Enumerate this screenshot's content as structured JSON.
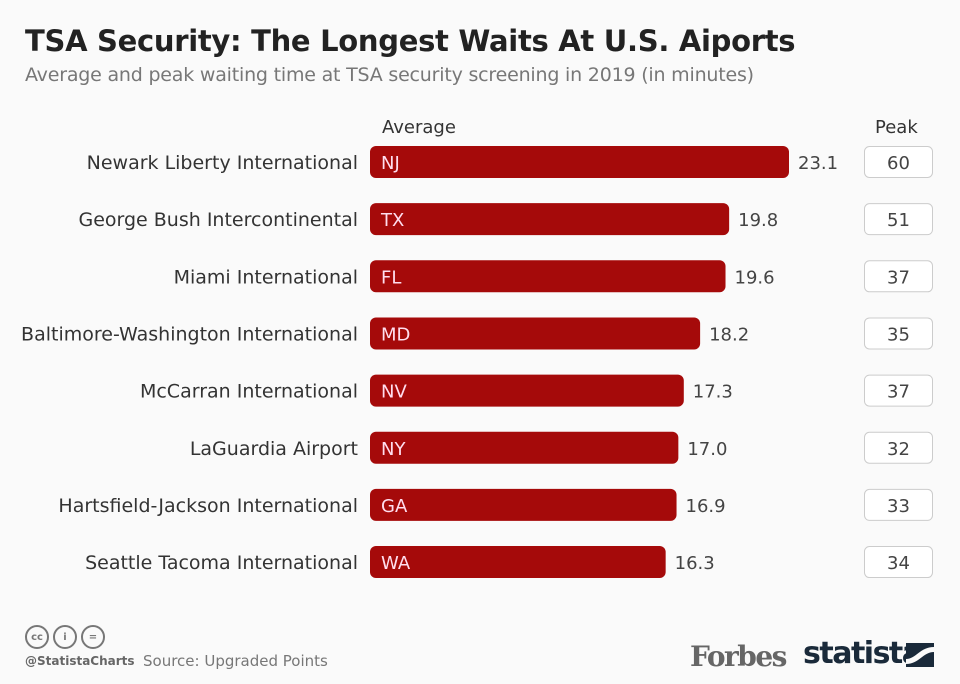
{
  "header": {
    "title": "TSA Security: The Longest Waits At U.S. Aiports",
    "subtitle": "Average and peak waiting time at TSA security screening in 2019 (in minutes)"
  },
  "chart_data": {
    "type": "bar",
    "orientation": "horizontal",
    "average_header": "Average",
    "peak_header": "Peak",
    "categories": [
      "Newark Liberty International",
      "George Bush Intercontinental",
      "Miami International",
      "Baltimore-Washington International",
      "McCarran International",
      "LaGuardia Airport",
      "Hartsfield-Jackson International",
      "Seattle Tacoma International"
    ],
    "bar_labels": [
      "NJ",
      "TX",
      "FL",
      "MD",
      "NV",
      "NY",
      "GA",
      "WA"
    ],
    "series": [
      {
        "name": "Average",
        "values": [
          23.1,
          19.8,
          19.6,
          18.2,
          17.3,
          17.0,
          16.9,
          16.3
        ]
      },
      {
        "name": "Peak",
        "values": [
          60,
          51,
          37,
          35,
          37,
          32,
          33,
          34
        ]
      }
    ],
    "xlim": [
      0,
      25
    ],
    "grid": false,
    "bar_color": "#a50a0a"
  },
  "footer": {
    "handle": "@StatistaCharts",
    "source": "Source: Upgraded Points",
    "cc_icons": [
      "cc-icon",
      "by-icon",
      "nd-icon"
    ],
    "cc_glyphs": [
      "cc",
      "i",
      "="
    ],
    "forbes": "Forbes",
    "statista": "statista"
  }
}
